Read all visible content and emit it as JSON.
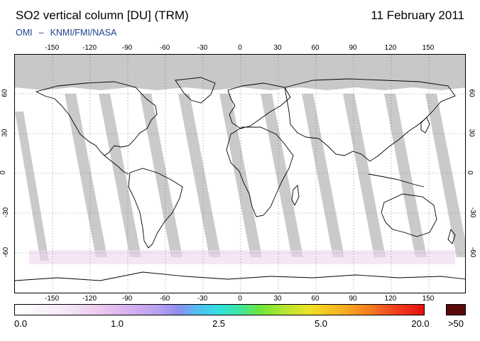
{
  "header": {
    "title": "SO2 vertical column [DU] (TRM)",
    "date": "11 February 2011",
    "credit_left": "OMI",
    "credit_sep": "–",
    "credit_right": "KNMI/FMI/NASA",
    "credit_color": "#1c3f8a"
  },
  "map": {
    "projection": "equirectangular",
    "lon_ticks_top": [
      "-150",
      "-120",
      "-90",
      "-60",
      "-30",
      "0",
      "30",
      "60",
      "90",
      "120",
      "150"
    ],
    "lon_ticks_bottom": [
      "-150",
      "-120",
      "-90",
      "-60",
      "-30",
      "0",
      "30",
      "60",
      "90",
      "120",
      "150"
    ],
    "lat_ticks_left": [
      "60",
      "30",
      "0",
      "-30",
      "-60"
    ],
    "lat_ticks_right": [
      "60",
      "30",
      "0",
      "-30",
      "-60"
    ],
    "no_data_color": "#c8c8c8",
    "background_color": "#ffffff",
    "coastline_color": "#000000",
    "grid": "dotted"
  },
  "colorbar": {
    "labels": [
      "0.0",
      "1.0",
      "2.5",
      "5.0",
      "20.0"
    ],
    "overflow_label": ">50",
    "overflow_color": "#5a0a0a"
  }
}
